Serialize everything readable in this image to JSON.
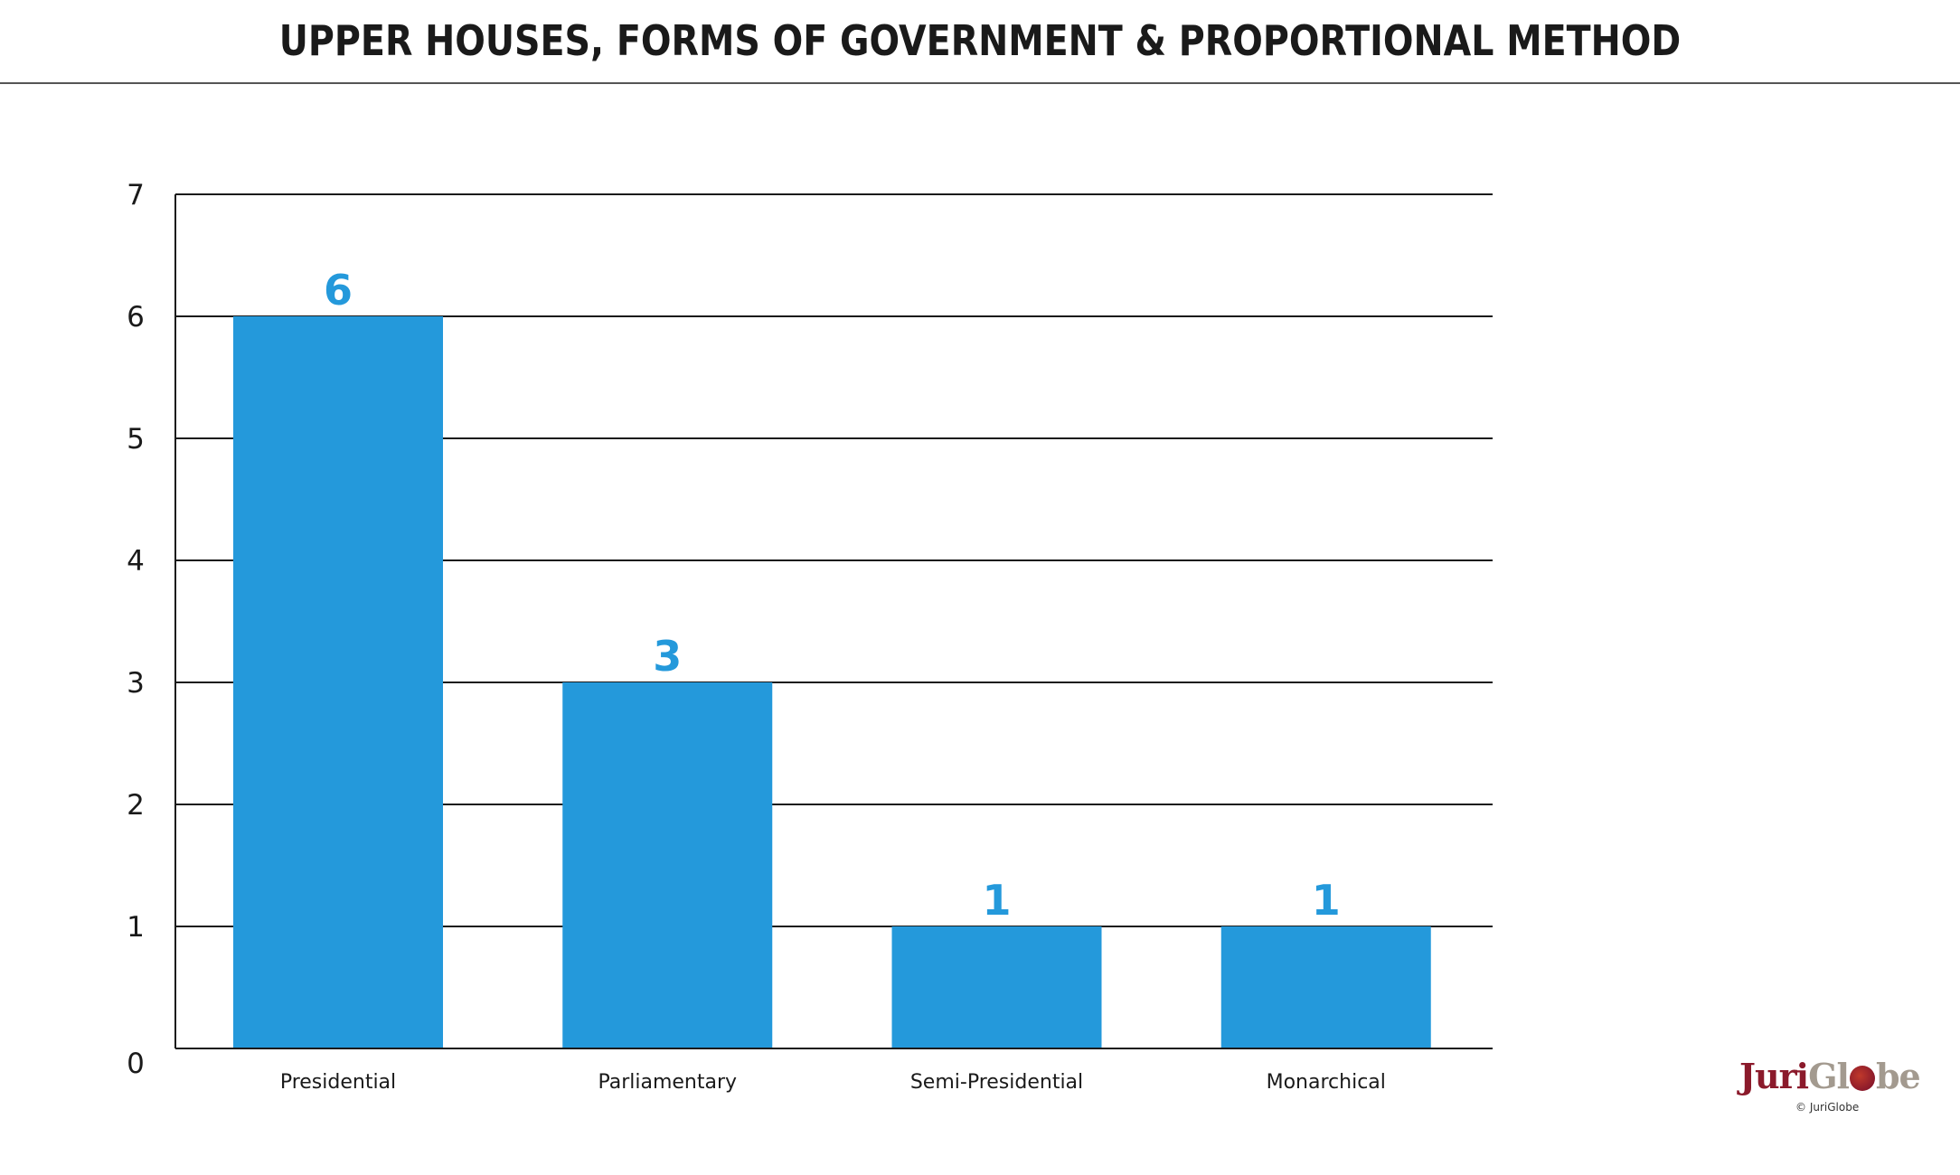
{
  "chart_data": {
    "type": "bar",
    "title": "UPPER HOUSES, FORMS OF GOVERNMENT & PROPORTIONAL METHOD",
    "categories": [
      "Presidential",
      "Parliamentary",
      "Semi-Presidential",
      "Monarchical"
    ],
    "values": [
      6,
      3,
      1,
      1
    ],
    "data_labels": [
      "6",
      "3",
      "1",
      "1"
    ],
    "ylim": [
      0,
      7
    ],
    "yticks": [
      "0",
      "1",
      "2",
      "3",
      "4",
      "5",
      "6",
      "7"
    ],
    "xlabel": "",
    "ylabel": "",
    "grid": true,
    "legend": "none",
    "bar_color": "#2499db",
    "label_color": "#2499db",
    "grid_color": "#1a1a1a"
  },
  "brand": {
    "name_part1": "Juri",
    "name_part2a": "Gl",
    "name_part2b": "be",
    "copyright": "© JuriGlobe",
    "primary_color": "#8b1a2b",
    "secondary_color": "#a39a8f",
    "icon": "globe-icon"
  }
}
